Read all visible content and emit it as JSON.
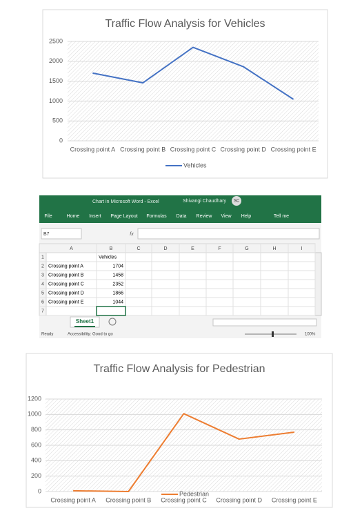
{
  "chart_data": [
    {
      "type": "line",
      "title": "Traffic Flow Analysis for Vehicles",
      "categories": [
        "Crossing point A",
        "Crossing point B",
        "Crossing point C",
        "Crossing point D",
        "Crossing point E"
      ],
      "series": [
        {
          "name": "Vehicles",
          "color": "#4472c4",
          "values": [
            1704,
            1458,
            2352,
            1866,
            1044
          ]
        }
      ],
      "ylim": [
        0,
        2500
      ],
      "yticks": [
        0,
        500,
        1000,
        1500,
        2000,
        2500
      ],
      "grid": true,
      "legend": "bottom"
    },
    {
      "type": "line",
      "title": "Traffic Flow Analysis for Pedestrian",
      "categories": [
        "Crossing point A",
        "Crossing point B",
        "Crossing point C",
        "Crossing point D",
        "Crossing point E"
      ],
      "series": [
        {
          "name": "Pedestrian",
          "color": "#ed7d31",
          "values": [
            10,
            0,
            1010,
            680,
            770
          ]
        }
      ],
      "ylim": [
        0,
        1200
      ],
      "yticks": [
        0,
        200,
        400,
        600,
        800,
        1000,
        1200
      ],
      "grid": true,
      "legend": "bottom"
    }
  ],
  "excel": {
    "title_bar": {
      "document": "Chart in Microsoft Word  -  Excel",
      "user": "Shivangi Chaudhary",
      "initials": "SC"
    },
    "tabs": [
      "File",
      "Home",
      "Insert",
      "Page Layout",
      "Formulas",
      "Data",
      "Review",
      "View",
      "Help",
      "Tell me"
    ],
    "name_box": "B7",
    "formula_label": "fx",
    "columns": [
      "A",
      "B",
      "C",
      "D",
      "E",
      "F",
      "G",
      "H",
      "I"
    ],
    "row_numbers": [
      "1",
      "2",
      "3",
      "4",
      "5",
      "6",
      "7"
    ],
    "header_cell": "Vehicles",
    "rows": [
      {
        "label": "Crossing point A",
        "value": 1704
      },
      {
        "label": "Crossing point B",
        "value": 1458
      },
      {
        "label": "Crossing point C",
        "value": 2352
      },
      {
        "label": "Crossing point D",
        "value": 1866
      },
      {
        "label": "Crossing point E",
        "value": 1044
      }
    ],
    "sheet_tab": "Sheet1",
    "status": {
      "ready": "Ready",
      "accessibility": "Accessibility: Good to go",
      "zoom": "100%"
    }
  }
}
